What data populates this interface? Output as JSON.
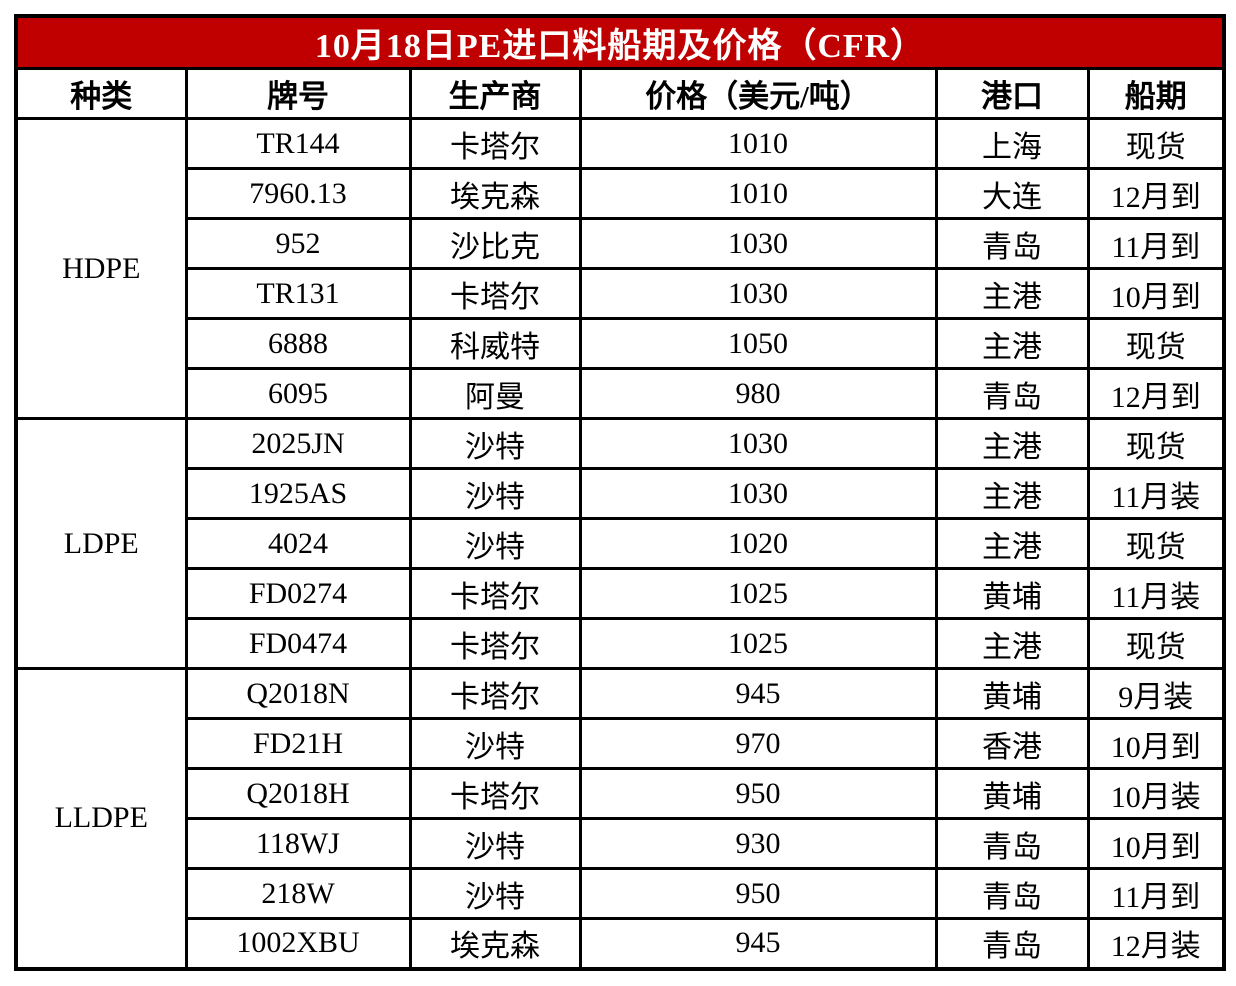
{
  "title": "10月18日PE进口料船期及价格（CFR）",
  "colors": {
    "title_bg": "#c00000",
    "title_text": "#ffffff",
    "border": "#000000"
  },
  "columns": [
    "种类",
    "牌号",
    "生产商",
    "价格（美元/吨）",
    "港口",
    "船期"
  ],
  "groups": [
    {
      "category": "HDPE",
      "rows": [
        [
          "TR144",
          "卡塔尔",
          "1010",
          "上海",
          "现货"
        ],
        [
          "7960.13",
          "埃克森",
          "1010",
          "大连",
          "12月到"
        ],
        [
          "952",
          "沙比克",
          "1030",
          "青岛",
          "11月到"
        ],
        [
          "TR131",
          "卡塔尔",
          "1030",
          "主港",
          "10月到"
        ],
        [
          "6888",
          "科威特",
          "1050",
          "主港",
          "现货"
        ],
        [
          "6095",
          "阿曼",
          "980",
          "青岛",
          "12月到"
        ]
      ]
    },
    {
      "category": "LDPE",
      "rows": [
        [
          "2025JN",
          "沙特",
          "1030",
          "主港",
          "现货"
        ],
        [
          "1925AS",
          "沙特",
          "1030",
          "主港",
          "11月装"
        ],
        [
          "4024",
          "沙特",
          "1020",
          "主港",
          "现货"
        ],
        [
          "FD0274",
          "卡塔尔",
          "1025",
          "黄埔",
          "11月装"
        ],
        [
          "FD0474",
          "卡塔尔",
          "1025",
          "主港",
          "现货"
        ]
      ]
    },
    {
      "category": "LLDPE",
      "rows": [
        [
          "Q2018N",
          "卡塔尔",
          "945",
          "黄埔",
          "9月装"
        ],
        [
          "FD21H",
          "沙特",
          "970",
          "香港",
          "10月到"
        ],
        [
          "Q2018H",
          "卡塔尔",
          "950",
          "黄埔",
          "10月装"
        ],
        [
          "118WJ",
          "沙特",
          "930",
          "青岛",
          "10月到"
        ],
        [
          "218W",
          "沙特",
          "950",
          "青岛",
          "11月到"
        ],
        [
          "1002XBU",
          "埃克森",
          "945",
          "青岛",
          "12月装"
        ]
      ]
    }
  ]
}
